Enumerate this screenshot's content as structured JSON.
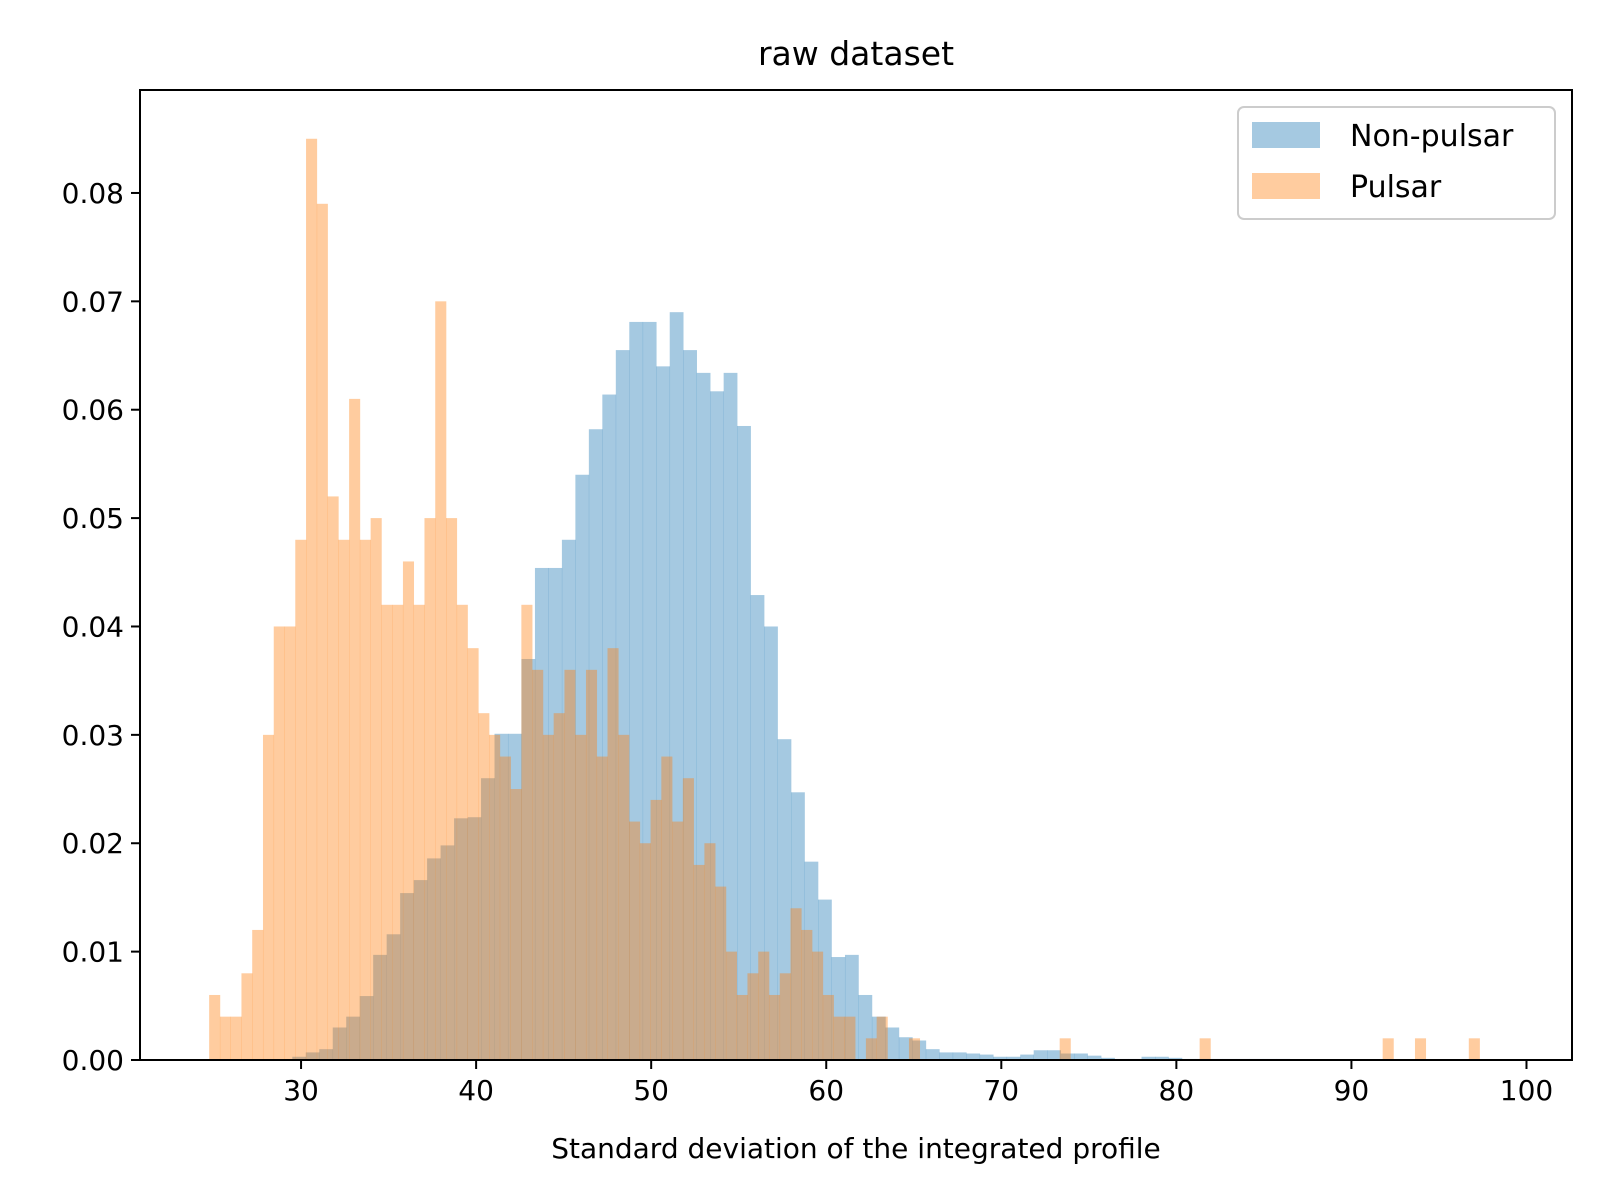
{
  "chart_data": {
    "type": "histogram",
    "title": "raw dataset",
    "xlabel": "Standard deviation of the integrated profile",
    "ylabel": "",
    "xlim": [
      20.8,
      102.6
    ],
    "ylim": [
      0,
      0.0895
    ],
    "xticks": [
      30,
      40,
      50,
      60,
      70,
      80,
      90,
      100
    ],
    "yticks": [
      0.0,
      0.01,
      0.02,
      0.03,
      0.04,
      0.05,
      0.06,
      0.07,
      0.08
    ],
    "ytick_labels": [
      "0.00",
      "0.01",
      "0.02",
      "0.03",
      "0.04",
      "0.05",
      "0.06",
      "0.07",
      "0.08"
    ],
    "xtick_labels": [
      "30",
      "40",
      "50",
      "60",
      "70",
      "80",
      "90",
      "100"
    ],
    "grid": false,
    "legend_position": "top-right",
    "series": [
      {
        "name": "Non-pulsar",
        "color": "#1f77b4",
        "alpha": 0.4,
        "bin_start": 29.5,
        "bin_width": 0.77,
        "values": [
          0.0003,
          0.0007,
          0.001,
          0.003,
          0.004,
          0.0059,
          0.0097,
          0.0116,
          0.0154,
          0.0166,
          0.0186,
          0.0198,
          0.0223,
          0.0224,
          0.026,
          0.0301,
          0.0301,
          0.037,
          0.0454,
          0.0454,
          0.048,
          0.054,
          0.0582,
          0.0614,
          0.0655,
          0.0681,
          0.0681,
          0.064,
          0.069,
          0.0655,
          0.0634,
          0.0617,
          0.0634,
          0.0585,
          0.0429,
          0.04,
          0.0296,
          0.0247,
          0.0183,
          0.0148,
          0.0095,
          0.0097,
          0.006,
          0.004,
          0.003,
          0.0021,
          0.0018,
          0.001,
          0.0007,
          0.0007,
          0.0006,
          0.0005,
          0.0003,
          0.0003,
          0.0005,
          0.0009,
          0.0009,
          0.0006,
          0.0006,
          0.0004,
          0.0002,
          0.0001,
          0.0001,
          0.0003,
          0.0003,
          0.0002,
          0.0001,
          0.0001,
          0.0001,
          0.0001,
          0.0001,
          0.0001,
          0.0001,
          0.0001
        ]
      },
      {
        "name": "Pulsar",
        "color": "#ff7f0e",
        "alpha": 0.4,
        "bin_start": 24.75,
        "bin_width": 0.615,
        "values": [
          0.006,
          0.004,
          0.004,
          0.008,
          0.012,
          0.03,
          0.04,
          0.04,
          0.048,
          0.085,
          0.079,
          0.052,
          0.048,
          0.061,
          0.048,
          0.05,
          0.042,
          0.042,
          0.046,
          0.042,
          0.05,
          0.07,
          0.05,
          0.042,
          0.038,
          0.032,
          0.03,
          0.028,
          0.025,
          0.042,
          0.036,
          0.03,
          0.032,
          0.036,
          0.03,
          0.036,
          0.028,
          0.038,
          0.03,
          0.022,
          0.02,
          0.024,
          0.028,
          0.022,
          0.026,
          0.018,
          0.02,
          0.016,
          0.01,
          0.006,
          0.008,
          0.01,
          0.006,
          0.008,
          0.014,
          0.012,
          0.01,
          0.006,
          0.004,
          0.004,
          0.0,
          0.002,
          0.004,
          0.0,
          0.0,
          0.002,
          0.0,
          0.0,
          0.0,
          0.0,
          0.0,
          0.0,
          0.0,
          0.0,
          0.0,
          0.0,
          0.0,
          0.0,
          0.0,
          0.002,
          0.0,
          0.0,
          0.0,
          0.0,
          0.0,
          0.0,
          0.0,
          0.0,
          0.0,
          0.0,
          0.0,
          0.0,
          0.002,
          0.0,
          0.0,
          0.0,
          0.0,
          0.0,
          0.0,
          0.0,
          0.0,
          0.0,
          0.0,
          0.0,
          0.0,
          0.0,
          0.0,
          0.0,
          0.0,
          0.002,
          0.0,
          0.0,
          0.002,
          0.0,
          0.0,
          0.0,
          0.0,
          0.002
        ]
      }
    ]
  }
}
